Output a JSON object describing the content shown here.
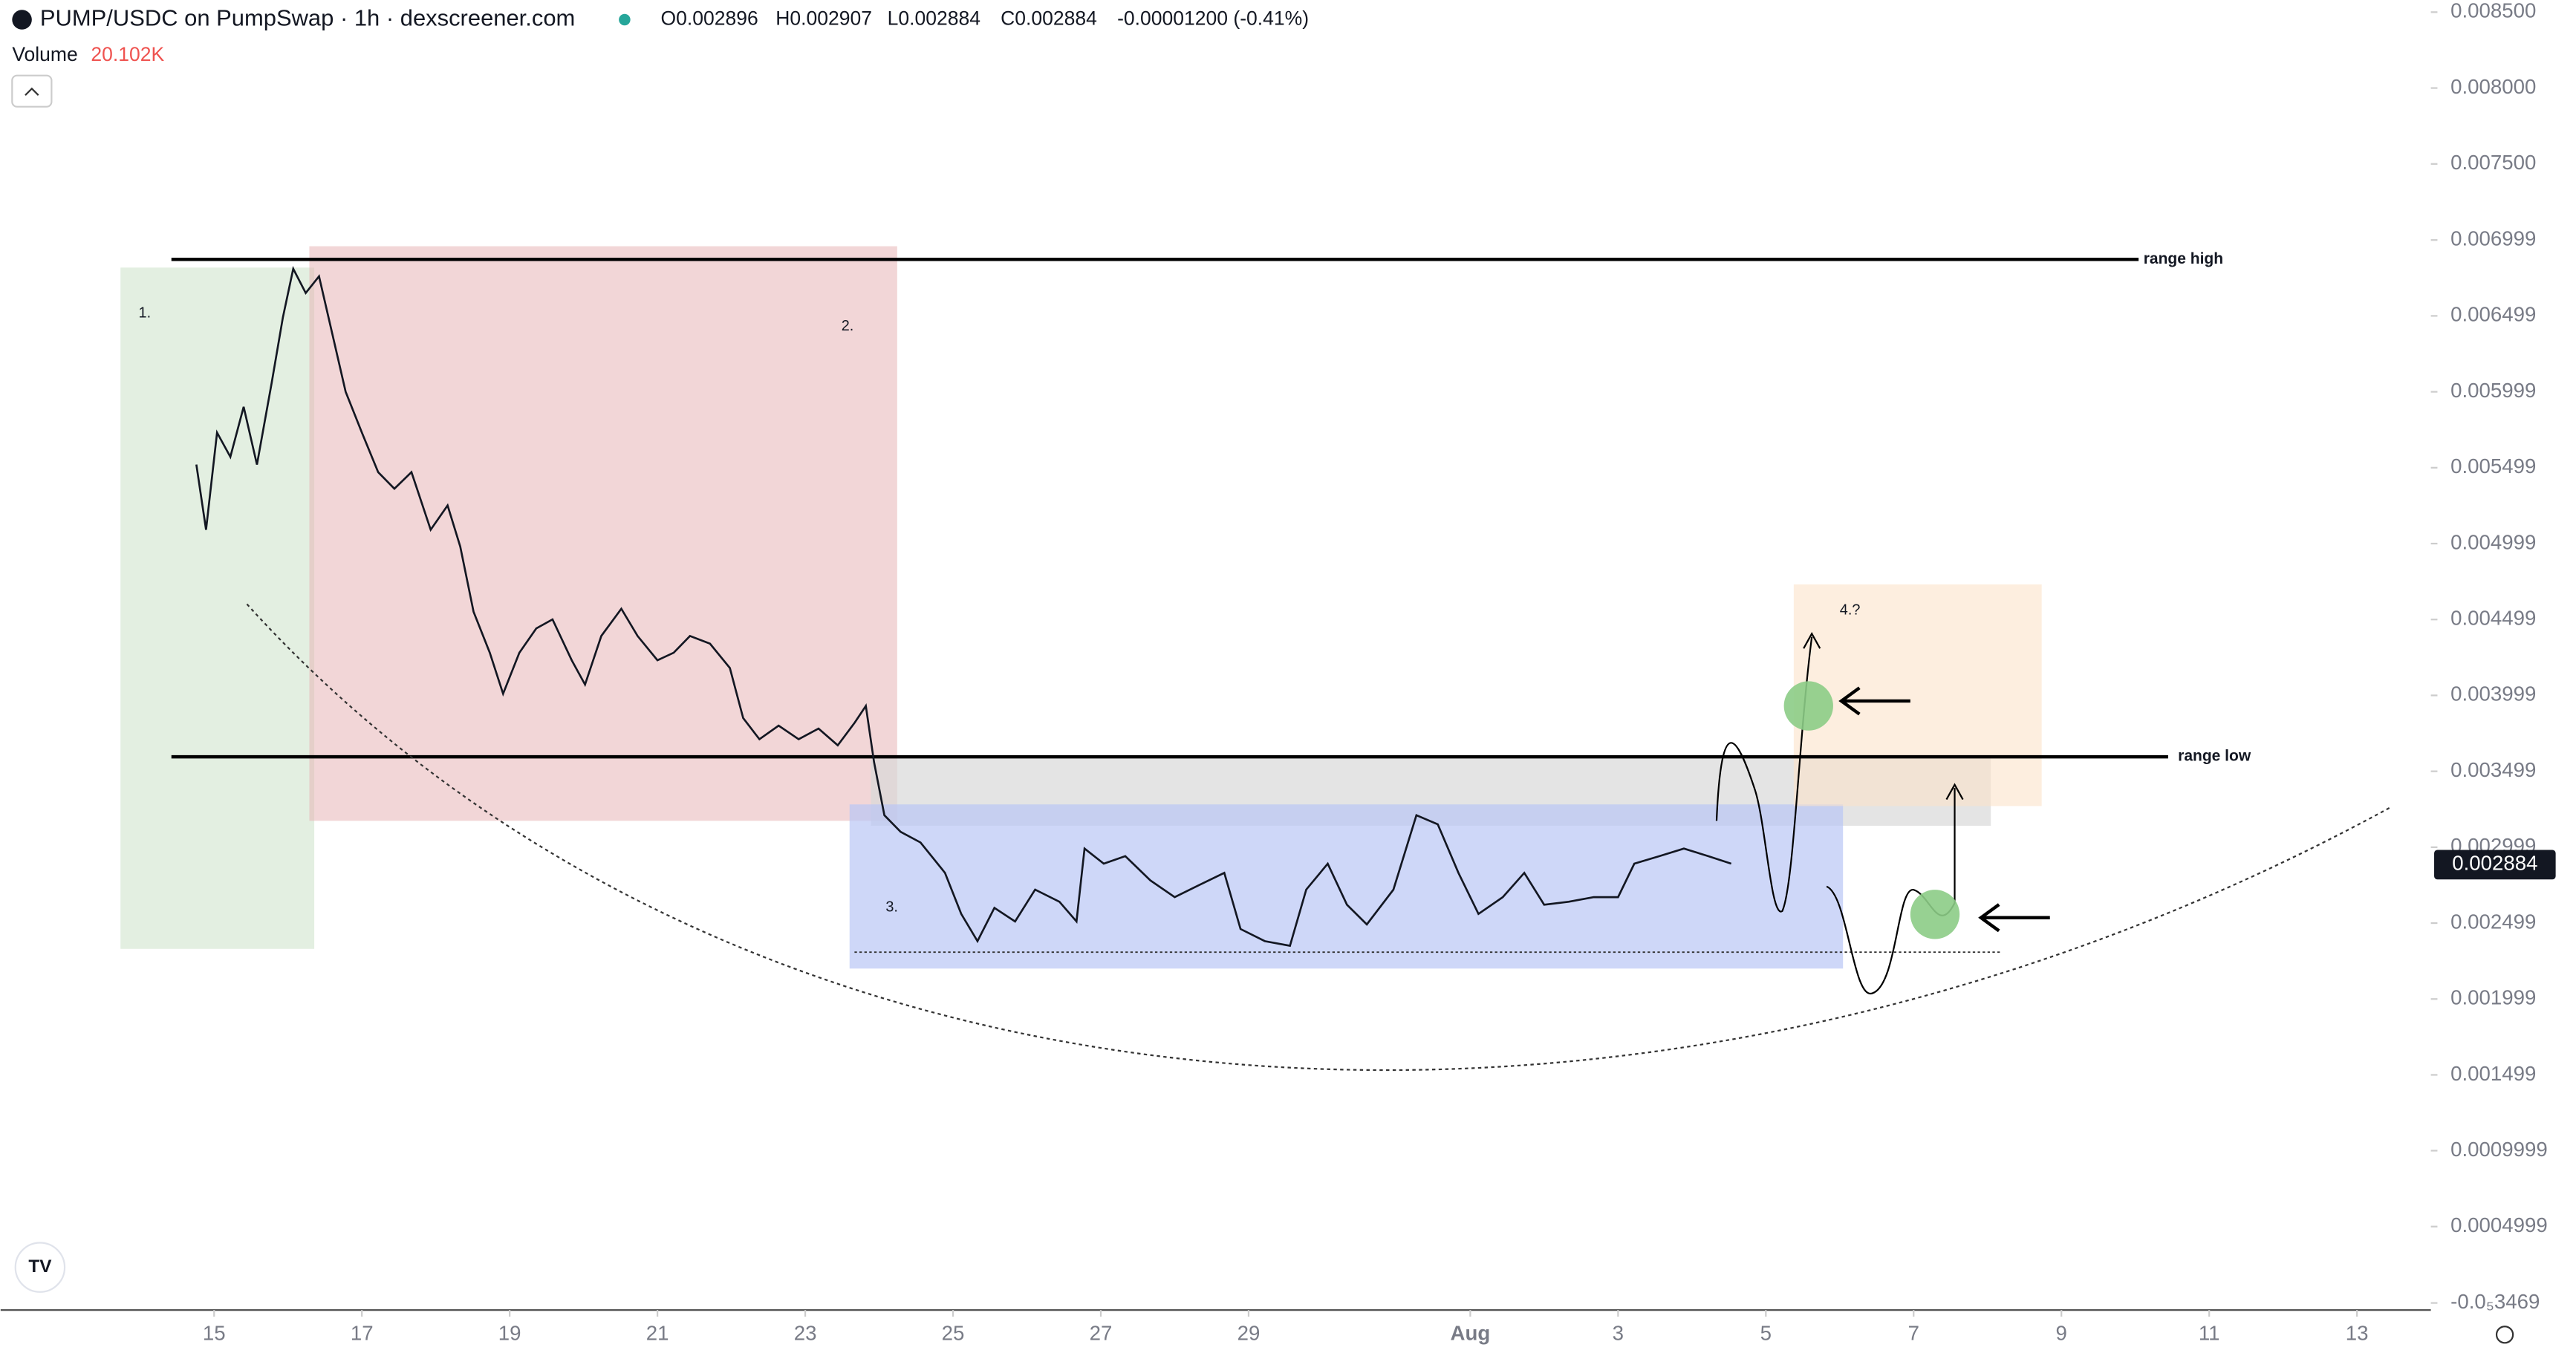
{
  "header": {
    "title": "PUMP/USDC on PumpSwap · 1h · dexscreener.com",
    "open": "O0.002896",
    "high": "H0.002907",
    "low": "L0.002884",
    "close": "C0.002884",
    "change": "-0.00001200 (-0.41%)",
    "volume_label": "Volume",
    "volume_value": "20.102K"
  },
  "annotations": {
    "range_high": "range high",
    "range_low": "range low",
    "step1": "1.",
    "step2": "2.",
    "step3": "3.",
    "step4": "4.?"
  },
  "chart_data": {
    "type": "line",
    "color": "#131722",
    "price_label": 0.002884,
    "xlim": [
      -2.889,
      30
    ],
    "ylim": [
      -5e-05,
      0.00858
    ],
    "xticks": [
      {
        "value": 0,
        "label": "15"
      },
      {
        "value": 2,
        "label": "17"
      },
      {
        "value": 4,
        "label": "19"
      },
      {
        "value": 6,
        "label": "21"
      },
      {
        "value": 8,
        "label": "23"
      },
      {
        "value": 10,
        "label": "25"
      },
      {
        "value": 12,
        "label": "27"
      },
      {
        "value": 14,
        "label": "29"
      },
      {
        "value": 17,
        "label": "Aug"
      },
      {
        "value": 19,
        "label": "3"
      },
      {
        "value": 21,
        "label": "5"
      },
      {
        "value": 23,
        "label": "7"
      },
      {
        "value": 25,
        "label": "9"
      },
      {
        "value": 27,
        "label": "11"
      },
      {
        "value": 29,
        "label": "13"
      }
    ],
    "yticks": [
      {
        "value": 0.0085,
        "label": "0.008500"
      },
      {
        "value": 0.008,
        "label": "0.008000"
      },
      {
        "value": 0.0075,
        "label": "0.007500"
      },
      0.006999,
      0.006499,
      0.005999,
      0.005499,
      0.004999,
      0.004499,
      0.003999,
      0.003499,
      0.002999,
      0.002499,
      0.001999,
      0.001499,
      0.0009999,
      0.0004999,
      {
        "value": -3.469e-06,
        "label": "-0.0₅3469"
      }
    ],
    "x": [
      -0.24,
      -0.11,
      0.04,
      0.22,
      0.4,
      0.58,
      0.78,
      0.93,
      1.07,
      1.24,
      1.42,
      1.6,
      1.78,
      2.0,
      2.22,
      2.44,
      2.67,
      2.93,
      3.16,
      3.33,
      3.51,
      3.73,
      3.91,
      4.13,
      4.36,
      4.58,
      4.84,
      5.02,
      5.24,
      5.51,
      5.73,
      6.0,
      6.22,
      6.44,
      6.71,
      6.98,
      7.16,
      7.38,
      7.64,
      7.91,
      8.18,
      8.44,
      8.67,
      8.82,
      8.93,
      9.07,
      9.29,
      9.56,
      9.89,
      10.11,
      10.33,
      10.56,
      10.84,
      11.11,
      11.44,
      11.67,
      11.78,
      12.04,
      12.33,
      12.67,
      13.0,
      13.33,
      13.67,
      13.89,
      14.22,
      14.56,
      14.78,
      15.07,
      15.33,
      15.6,
      15.96,
      16.27,
      16.56,
      16.84,
      17.11,
      17.44,
      17.73,
      18.0,
      18.33,
      18.67,
      19.0,
      19.22,
      19.56,
      19.89,
      20.22,
      20.53
    ],
    "values": [
      0.00552,
      0.00509,
      0.00573,
      0.00557,
      0.0059,
      0.00552,
      0.00606,
      0.00649,
      0.00681,
      0.00665,
      0.00676,
      0.00638,
      0.006,
      0.00573,
      0.00547,
      0.00536,
      0.00547,
      0.00509,
      0.00525,
      0.00498,
      0.00455,
      0.00428,
      0.00401,
      0.00428,
      0.00444,
      0.0045,
      0.00423,
      0.00407,
      0.00439,
      0.00457,
      0.00439,
      0.00423,
      0.00428,
      0.00439,
      0.00434,
      0.00418,
      0.00385,
      0.00371,
      0.0038,
      0.00371,
      0.00378,
      0.00367,
      0.00382,
      0.00393,
      0.00356,
      0.00321,
      0.0031,
      0.00303,
      0.00283,
      0.00256,
      0.00238,
      0.0026,
      0.00251,
      0.00272,
      0.00264,
      0.00251,
      0.00299,
      0.00289,
      0.00294,
      0.00278,
      0.00267,
      0.00275,
      0.00283,
      0.00246,
      0.00238,
      0.00235,
      0.00272,
      0.00289,
      0.00262,
      0.00249,
      0.00272,
      0.00321,
      0.00315,
      0.00283,
      0.00256,
      0.00267,
      0.00283,
      0.00262,
      0.00264,
      0.00267,
      0.00267,
      0.00289,
      0.00294,
      0.00299,
      0.00294,
      0.00289
    ]
  }
}
